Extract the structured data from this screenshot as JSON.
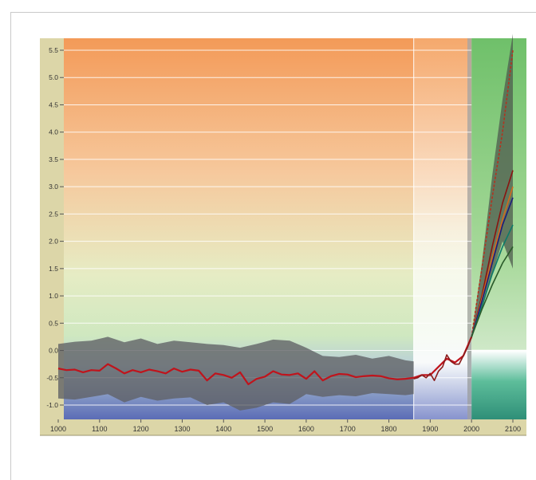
{
  "chart_data": {
    "type": "line",
    "title": "",
    "xlabel": "",
    "ylabel": "",
    "xlim": [
      1000,
      2100
    ],
    "ylim": [
      -1.2,
      5.7
    ],
    "x_ticks": [
      1000,
      1100,
      1200,
      1300,
      1400,
      1500,
      1600,
      1700,
      1800,
      1900,
      2000,
      2100
    ],
    "x_tick_labels": [
      "1000",
      "1100",
      "1200",
      "1300",
      "1400",
      "1500",
      "1600",
      "1700",
      "1800",
      "1900",
      "2000",
      "2100"
    ],
    "y_ticks": [
      -1.0,
      -0.5,
      0.0,
      0.5,
      1.0,
      1.5,
      2.0,
      2.5,
      3.0,
      3.5,
      4.0,
      4.5,
      5.0,
      5.5
    ],
    "y_tick_labels": [
      "-1.0",
      "-0.5",
      "0.0",
      "0.5",
      "1.0",
      "1.5",
      "2.0",
      "2.5",
      "3.0",
      "3.5",
      "4.0",
      "4.5",
      "5.0",
      "5.5"
    ],
    "grid": true,
    "legend": "none",
    "reconstruction_smoothed": {
      "color": "#c0141c",
      "x": [
        1000,
        1020,
        1040,
        1060,
        1080,
        1100,
        1120,
        1140,
        1160,
        1180,
        1200,
        1220,
        1240,
        1260,
        1280,
        1300,
        1320,
        1340,
        1360,
        1380,
        1400,
        1420,
        1440,
        1460,
        1480,
        1500,
        1520,
        1540,
        1560,
        1580,
        1600,
        1620,
        1640,
        1660,
        1680,
        1700,
        1720,
        1740,
        1760,
        1780,
        1800,
        1820,
        1840,
        1860,
        1880,
        1900,
        1920,
        1940,
        1960,
        1980,
        2000
      ],
      "y": [
        -0.33,
        -0.36,
        -0.35,
        -0.4,
        -0.36,
        -0.37,
        -0.25,
        -0.33,
        -0.42,
        -0.36,
        -0.4,
        -0.35,
        -0.38,
        -0.42,
        -0.33,
        -0.39,
        -0.35,
        -0.37,
        -0.55,
        -0.42,
        -0.45,
        -0.5,
        -0.4,
        -0.62,
        -0.52,
        -0.48,
        -0.38,
        -0.44,
        -0.45,
        -0.42,
        -0.52,
        -0.38,
        -0.55,
        -0.47,
        -0.43,
        -0.44,
        -0.49,
        -0.47,
        -0.46,
        -0.47,
        -0.51,
        -0.53,
        -0.52,
        -0.5,
        -0.45,
        -0.45,
        -0.3,
        -0.15,
        -0.22,
        -0.1,
        0.25
      ]
    },
    "uncertainty_band": {
      "color": "#5f6064",
      "x": [
        1000,
        1040,
        1080,
        1120,
        1160,
        1200,
        1240,
        1280,
        1320,
        1360,
        1400,
        1440,
        1480,
        1520,
        1560,
        1600,
        1640,
        1680,
        1720,
        1760,
        1800,
        1840,
        1860
      ],
      "upper": [
        0.12,
        0.16,
        0.18,
        0.25,
        0.15,
        0.22,
        0.12,
        0.18,
        0.15,
        0.12,
        0.1,
        0.05,
        0.12,
        0.2,
        0.18,
        0.05,
        -0.1,
        -0.12,
        -0.08,
        -0.15,
        -0.1,
        -0.18,
        -0.2
      ],
      "lower": [
        -0.88,
        -0.9,
        -0.85,
        -0.8,
        -0.95,
        -0.85,
        -0.92,
        -0.88,
        -0.86,
        -1.0,
        -0.95,
        -1.1,
        -1.05,
        -0.95,
        -0.98,
        -0.8,
        -0.85,
        -0.82,
        -0.84,
        -0.78,
        -0.8,
        -0.82,
        -0.8
      ]
    },
    "instrumental_record": {
      "color": "#8a1c1c",
      "x": [
        1860,
        1870,
        1880,
        1890,
        1900,
        1910,
        1920,
        1930,
        1940,
        1950,
        1960,
        1970,
        1980,
        1990,
        2000
      ],
      "y": [
        -0.52,
        -0.5,
        -0.45,
        -0.5,
        -0.42,
        -0.55,
        -0.38,
        -0.3,
        -0.08,
        -0.2,
        -0.25,
        -0.25,
        -0.1,
        0.05,
        0.25
      ]
    },
    "projections": {
      "envelope": {
        "color": "#4d5a4d",
        "x": [
          2000,
          2025,
          2050,
          2075,
          2100
        ],
        "upper": [
          0.25,
          1.6,
          3.2,
          4.6,
          5.8
        ],
        "lower": [
          0.2,
          0.8,
          1.4,
          2.0,
          1.5
        ]
      },
      "series": [
        {
          "color": "#b5321e",
          "dashed": true,
          "x": [
            2000,
            2025,
            2050,
            2075,
            2100
          ],
          "y": [
            0.25,
            1.5,
            2.8,
            4.0,
            5.5
          ]
        },
        {
          "color": "#8a1410",
          "dashed": false,
          "x": [
            2000,
            2025,
            2050,
            2075,
            2100
          ],
          "y": [
            0.25,
            1.0,
            1.9,
            2.7,
            3.3
          ]
        },
        {
          "color": "#d2691e",
          "dashed": false,
          "x": [
            2000,
            2025,
            2050,
            2075,
            2100
          ],
          "y": [
            0.25,
            0.95,
            1.7,
            2.4,
            3.0
          ]
        },
        {
          "color": "#1c1c7a",
          "dashed": false,
          "x": [
            2000,
            2025,
            2050,
            2075,
            2100
          ],
          "y": [
            0.25,
            0.9,
            1.6,
            2.3,
            2.8
          ]
        },
        {
          "color": "#0e7a6a",
          "dashed": false,
          "x": [
            2000,
            2025,
            2050,
            2075,
            2100
          ],
          "y": [
            0.25,
            0.8,
            1.4,
            1.9,
            2.3
          ]
        },
        {
          "color": "#2a5a2a",
          "dashed": false,
          "x": [
            2000,
            2025,
            2050,
            2075,
            2100
          ],
          "y": [
            0.25,
            0.75,
            1.2,
            1.6,
            1.9
          ]
        }
      ]
    },
    "background_colors": {
      "warm": "#f4a060",
      "neutral": "#d9edc5",
      "cool": "#6272b8",
      "projection_zone": "#7ec47a",
      "instrumental_zone": "#ffffff",
      "axis_panel": "#dcd6a8",
      "gridline": "#ffffff"
    }
  }
}
